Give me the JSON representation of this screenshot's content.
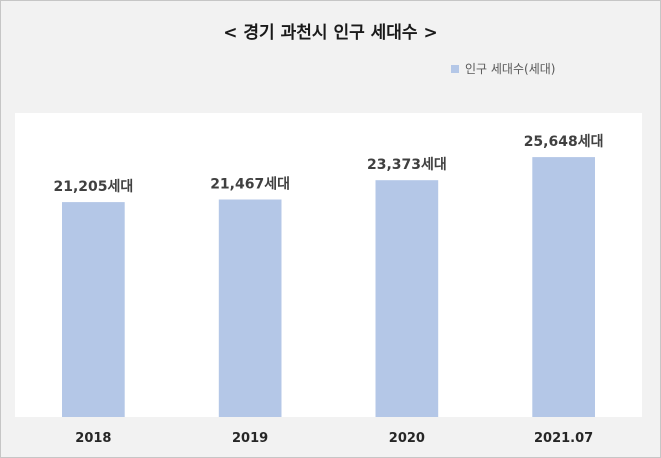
{
  "chart_data": {
    "type": "bar",
    "title": "< 경기 과천시 인구 세대수 >",
    "categories": [
      "2018",
      "2019",
      "2020",
      "2021.07"
    ],
    "series": [
      {
        "name": "인구 세대수(세대)",
        "values": [
          21205,
          21467,
          23373,
          25648
        ]
      }
    ],
    "data_labels": [
      "21,205세대",
      "21,467세대",
      "23,373세대",
      "25,648세대"
    ],
    "xlabel": "",
    "ylabel": "",
    "ylim": [
      0,
      30000
    ],
    "grid": false,
    "legend_position": "top-right"
  },
  "colors": {
    "bar": "#b4c7e7",
    "background": "#f2f2f2",
    "plot_background": "#ffffff"
  }
}
